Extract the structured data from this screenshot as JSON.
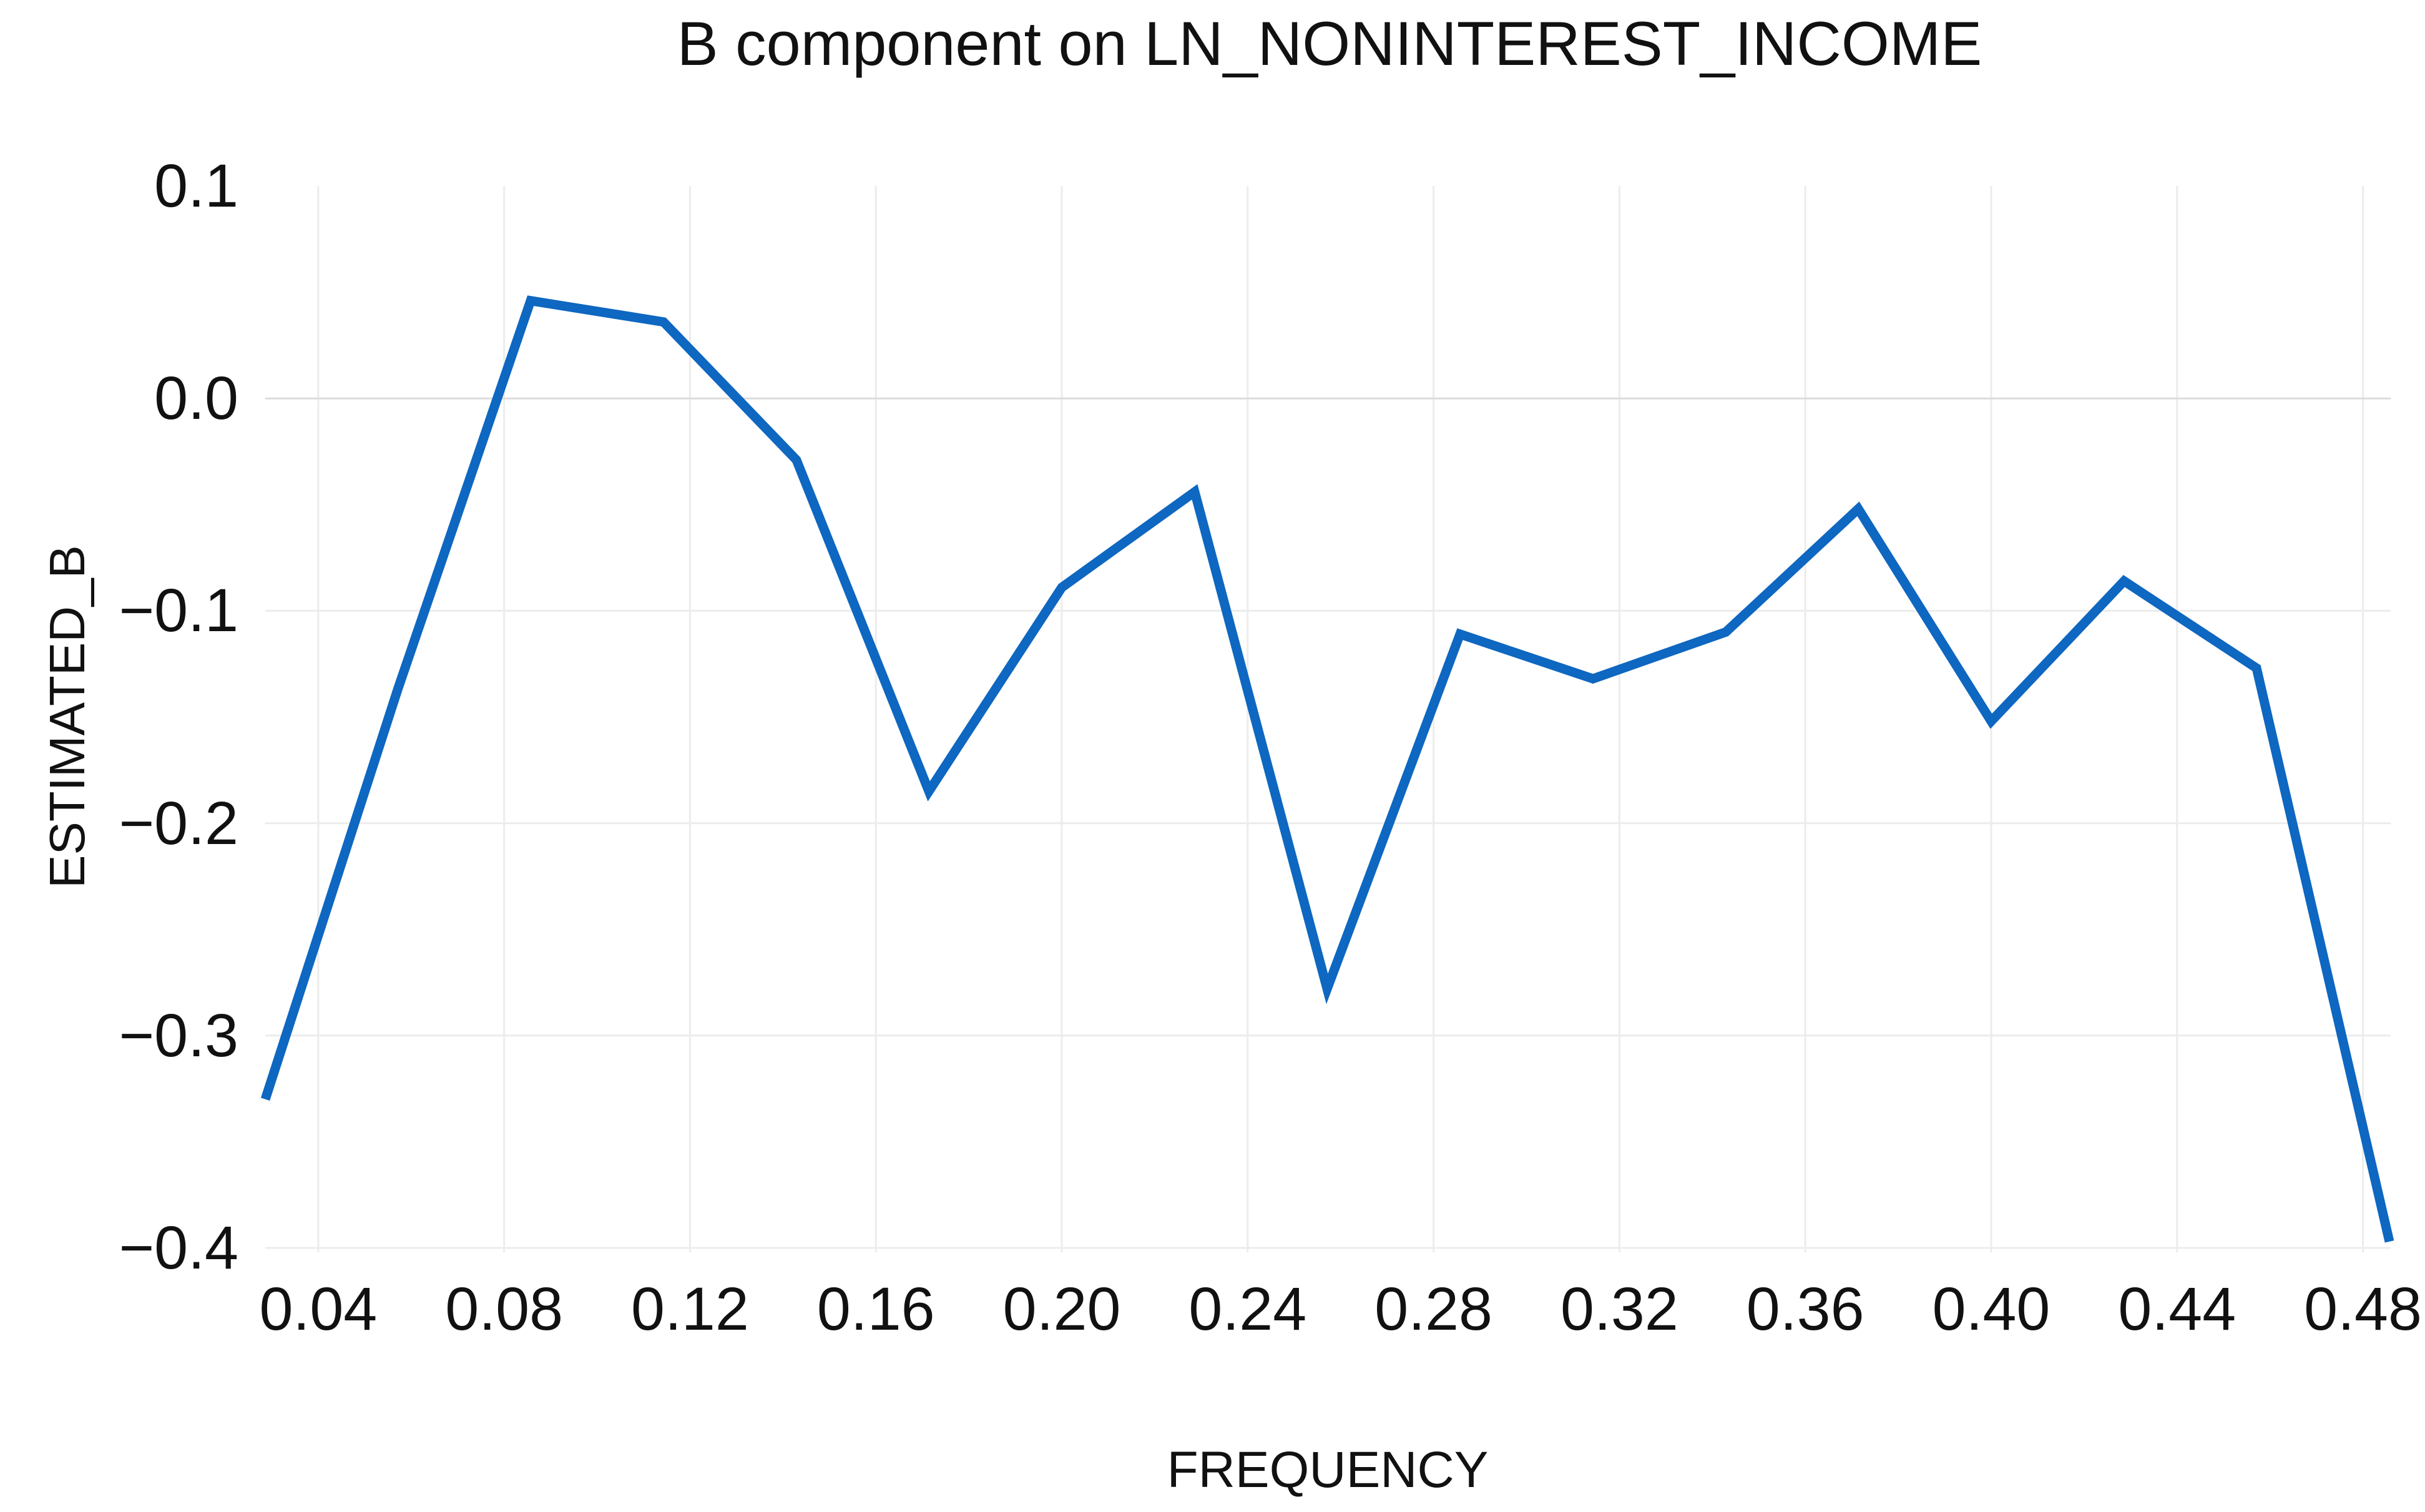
{
  "page": {
    "background": "#ffffff",
    "text_color": "#111111"
  },
  "chart_data": {
    "type": "line",
    "title": "B component on LN_NONINTEREST_INCOME",
    "xlabel": "FREQUENCY",
    "ylabel": "ESTIMATED_B",
    "legend": "none",
    "grid": "on",
    "xlim": [
      0.0286,
      0.4857
    ],
    "ylim": [
      -0.4,
      0.1
    ],
    "x": [
      0.0286,
      0.0571,
      0.0857,
      0.1143,
      0.1429,
      0.1714,
      0.2,
      0.2286,
      0.2571,
      0.2857,
      0.3143,
      0.3429,
      0.3714,
      0.4,
      0.4286,
      0.4571,
      0.4857
    ],
    "series": [
      {
        "name": "ESTIMATED_B",
        "color": "#0E67C0",
        "values": [
          -0.33,
          -0.137,
          0.046,
          0.036,
          -0.029,
          -0.185,
          -0.089,
          -0.044,
          -0.278,
          -0.111,
          -0.132,
          -0.11,
          -0.052,
          -0.152,
          -0.086,
          -0.127,
          -0.397
        ]
      }
    ],
    "xticks": [
      {
        "v": 0.04,
        "label": "0.04"
      },
      {
        "v": 0.08,
        "label": "0.08"
      },
      {
        "v": 0.12,
        "label": "0.12"
      },
      {
        "v": 0.16,
        "label": "0.16"
      },
      {
        "v": 0.2,
        "label": "0.20"
      },
      {
        "v": 0.24,
        "label": "0.24"
      },
      {
        "v": 0.28,
        "label": "0.28"
      },
      {
        "v": 0.32,
        "label": "0.32"
      },
      {
        "v": 0.36,
        "label": "0.36"
      },
      {
        "v": 0.4,
        "label": "0.40"
      },
      {
        "v": 0.44,
        "label": "0.44"
      },
      {
        "v": 0.48,
        "label": "0.48"
      }
    ],
    "yticks": [
      {
        "v": 0.1,
        "label": "0.1",
        "grid": false,
        "zero": false
      },
      {
        "v": 0.0,
        "label": "0.0",
        "grid": true,
        "zero": true
      },
      {
        "v": -0.1,
        "label": "−0.1",
        "grid": true,
        "zero": false
      },
      {
        "v": -0.2,
        "label": "−0.2",
        "grid": true,
        "zero": false
      },
      {
        "v": -0.3,
        "label": "−0.3",
        "grid": true,
        "zero": false
      },
      {
        "v": -0.4,
        "label": "−0.4",
        "grid": true,
        "zero": false
      }
    ],
    "colors": {
      "line": "#0E67C0",
      "gridline": "#ececec",
      "zero_gridline": "#dcdcdc",
      "text": "#111111",
      "background": "#ffffff"
    },
    "line_width": 15
  }
}
